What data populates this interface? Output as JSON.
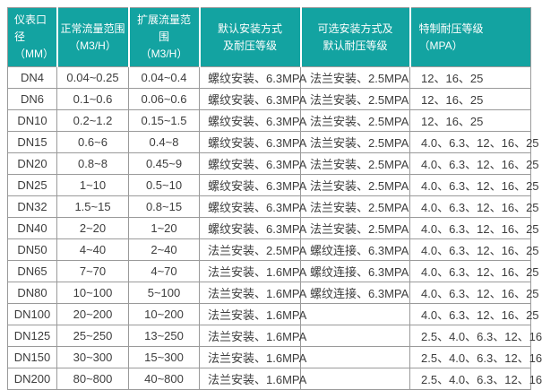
{
  "colors": {
    "header_background": "#13A3A1",
    "header_text": "#FFFFFF",
    "body_text": "#3D3D3D",
    "grid_border": "#9A9A9A"
  },
  "table": {
    "header": [
      {
        "line1": "仪表口径",
        "line2": "（MM）"
      },
      {
        "line1": "正常流量范围",
        "line2": "（M3/H）"
      },
      {
        "line1": "扩展流量范围",
        "line2": "（M3/H）"
      },
      {
        "line1": "默认安装方式",
        "line2": "及耐压等级"
      },
      {
        "line1": "可选安装方式及",
        "line2": "默认耐压等级"
      },
      {
        "line1": "特制耐压等级",
        "line2": "（MPA）"
      }
    ],
    "rows": [
      [
        "DN4",
        "0.04~0.25",
        "0.04~0.4",
        "螺纹安装、6.3MPA",
        "法兰安装、2.5MPA",
        "12、16、25"
      ],
      [
        "DN6",
        "0.1~0.6",
        "0.06~0.6",
        "螺纹安装、6.3MPA",
        "法兰安装、2.5MPA",
        "12、16、25"
      ],
      [
        "DN10",
        "0.2~1.2",
        "0.15~1.5",
        "螺纹安装、6.3MPA",
        "法兰安装、2.5MPA",
        "12、16、25"
      ],
      [
        "DN15",
        "0.6~6",
        "0.4~8",
        "螺纹安装、6.3MPA",
        "法兰安装、2.5MPA",
        "4.0、6.3、12、16、25"
      ],
      [
        "DN20",
        "0.8~8",
        "0.45~9",
        "螺纹安装、6.3MPA",
        "法兰安装、2.5MPA",
        "4.0、6.3、12、16、25"
      ],
      [
        "DN25",
        "1~10",
        "0.5~10",
        "螺纹安装、6.3MPA",
        "法兰安装、2.5MPA",
        "4.0、6.3、12、16、25"
      ],
      [
        "DN32",
        "1.5~15",
        "0.8~15",
        "螺纹安装、6.3MPA",
        "法兰安装、2.5MPA",
        "4.0、6.3、12、16、25"
      ],
      [
        "DN40",
        "2~20",
        "1~20",
        "螺纹安装、6.3MPA",
        "法兰安装、2.5MPA",
        "4.0、6.3、12、16、25"
      ],
      [
        "DN50",
        "4~40",
        "2~40",
        "法兰安装、2.5MPA",
        "螺纹连接、6.3MPA",
        "4.0、6.3、12、16、25"
      ],
      [
        "DN65",
        "7~70",
        "4~70",
        "法兰安装、1.6MPA",
        "螺纹连接、6.3MPA",
        "4.0、6.3、12、16、25"
      ],
      [
        "DN80",
        "10~100",
        "5~100",
        "法兰安装、1.6MPA",
        "螺纹连接、6.3MPA",
        "4.0、6.3、12、16、25"
      ],
      [
        "DN100",
        "20~200",
        "10~200",
        "法兰安装、1.6MPA",
        "",
        "4.0、6.3、12、16、25"
      ],
      [
        "DN125",
        "25~250",
        "13~250",
        "法兰安装、1.6MPA",
        "",
        "2.5、4.0、6.3、12、16"
      ],
      [
        "DN150",
        "30~300",
        "15~300",
        "法兰安装、1.6MPA",
        "",
        "2.5、4.0、6.3、12、16"
      ],
      [
        "DN200",
        "80~800",
        "40~800",
        "法兰安装、1.6MPA",
        "",
        "2.5、4.0、6.3、12、16"
      ]
    ]
  }
}
